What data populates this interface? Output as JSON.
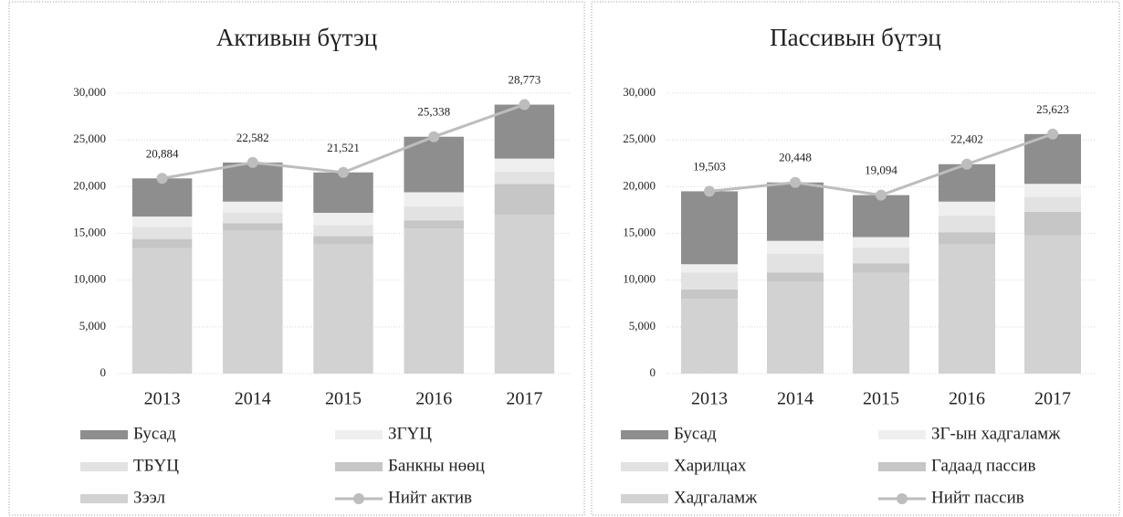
{
  "chart_data": [
    {
      "type": "bar",
      "title": "Активын бүтэц",
      "categories": [
        "2013",
        "2014",
        "2015",
        "2016",
        "2017"
      ],
      "ylim": [
        0,
        30000
      ],
      "yticks": [
        0,
        {
          "value": 5000,
          "label": "5,000"
        },
        {
          "value": 10000,
          "label": "10,000"
        },
        {
          "value": 15000,
          "label": "15,000"
        },
        {
          "value": 20000,
          "label": "20,000"
        },
        {
          "value": 25000,
          "label": "25,000"
        },
        {
          "value": 30000,
          "label": "30,000"
        }
      ],
      "grid": true,
      "series": [
        {
          "name": "Зээл",
          "type": "bar",
          "color": "#d2d2d2",
          "values": [
            13400,
            15300,
            13800,
            15500,
            17000
          ]
        },
        {
          "name": "Банкны нөөц",
          "type": "bar",
          "color": "#c6c6c6",
          "values": [
            1000,
            800,
            900,
            900,
            3300
          ]
        },
        {
          "name": "ТБҮЦ",
          "type": "bar",
          "color": "#e2e2e2",
          "values": [
            1300,
            1100,
            1200,
            1500,
            1300
          ]
        },
        {
          "name": "ЗГҮЦ",
          "type": "bar",
          "color": "#efefef",
          "values": [
            1100,
            1200,
            1300,
            1500,
            1400
          ]
        },
        {
          "name": "Бусад",
          "type": "bar",
          "color": "#8e8e8e",
          "values": [
            4084,
            4182,
            4321,
            5938,
            5773
          ]
        },
        {
          "name": "Нийт актив",
          "type": "line",
          "color": "#bdbdbd",
          "values": [
            20884,
            22582,
            21521,
            25338,
            28773
          ],
          "value_labels": [
            "20,884",
            "22,582",
            "21,521",
            "25,338",
            "28,773"
          ]
        }
      ]
    },
    {
      "type": "bar",
      "title": "Пассивын бүтэц",
      "categories": [
        "2013",
        "2014",
        "2015",
        "2016",
        "2017"
      ],
      "ylim": [
        0,
        30000
      ],
      "yticks": [
        0,
        {
          "value": 5000,
          "label": "5,000"
        },
        {
          "value": 10000,
          "label": "10,000"
        },
        {
          "value": 15000,
          "label": "15,000"
        },
        {
          "value": 20000,
          "label": "20,000"
        },
        {
          "value": 25000,
          "label": "25,000"
        },
        {
          "value": 30000,
          "label": "30,000"
        }
      ],
      "grid": true,
      "series": [
        {
          "name": "Хадгаламж",
          "type": "bar",
          "color": "#d2d2d2",
          "values": [
            8000,
            9800,
            10800,
            13800,
            14800
          ]
        },
        {
          "name": "Гадаад пассив",
          "type": "bar",
          "color": "#c6c6c6",
          "values": [
            1000,
            1000,
            1000,
            1300,
            2500
          ]
        },
        {
          "name": "Харилцах",
          "type": "bar",
          "color": "#e2e2e2",
          "values": [
            1800,
            2000,
            1700,
            1800,
            1600
          ]
        },
        {
          "name": "ЗГ-ын хадгаламж",
          "type": "bar",
          "color": "#efefef",
          "values": [
            900,
            1400,
            1100,
            1500,
            1400
          ]
        },
        {
          "name": "Бусад",
          "type": "bar",
          "color": "#8e8e8e",
          "values": [
            7803,
            6248,
            4494,
            4002,
            5323
          ]
        },
        {
          "name": "Нийт пассив",
          "type": "line",
          "color": "#bdbdbd",
          "values": [
            19503,
            20448,
            19094,
            22402,
            25623
          ],
          "value_labels": [
            "19,503",
            "20,448",
            "19,094",
            "22,402",
            "25,623"
          ]
        }
      ]
    }
  ]
}
